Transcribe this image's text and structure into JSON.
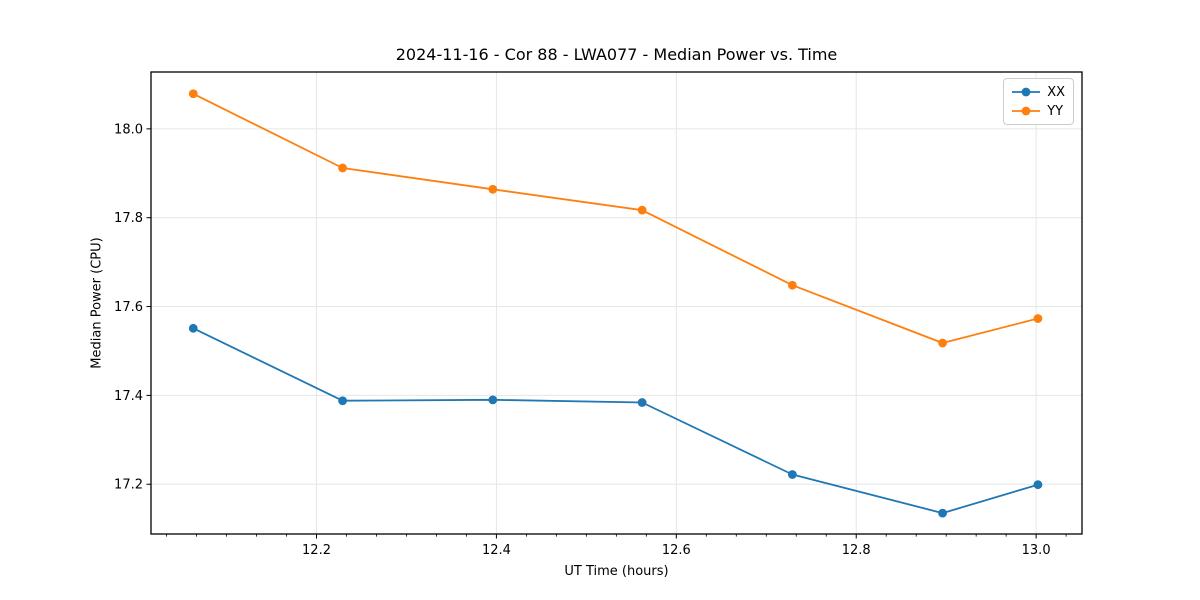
{
  "chart_data": {
    "type": "line",
    "title": "2024-11-16 - Cor 88 - LWA077 - Median Power vs. Time",
    "xlabel": "UT Time (hours)",
    "ylabel": "Median Power (CPU)",
    "xlim": [
      12.016,
      13.051
    ],
    "ylim": [
      17.088,
      18.128
    ],
    "x_ticks": [
      {
        "value": 12.2,
        "label": "12.2"
      },
      {
        "value": 12.4,
        "label": "12.4"
      },
      {
        "value": 12.6,
        "label": "12.6"
      },
      {
        "value": 12.8,
        "label": "12.8"
      },
      {
        "value": 13.0,
        "label": "13.0"
      }
    ],
    "y_ticks": [
      {
        "value": 17.2,
        "label": "17.2"
      },
      {
        "value": 17.4,
        "label": "17.4"
      },
      {
        "value": 17.6,
        "label": "17.6"
      },
      {
        "value": 17.8,
        "label": "17.8"
      },
      {
        "value": 18.0,
        "label": "18.0"
      }
    ],
    "x_minor_subdivisions": 6,
    "grid": true,
    "grid_color": "#e6e6e6",
    "background": "#ffffff",
    "spine_color": "#000000",
    "legend_position": "upper right",
    "marker": "circle",
    "x": [
      12.063,
      12.229,
      12.396,
      12.562,
      12.729,
      12.896,
      13.002
    ],
    "series": [
      {
        "name": "XX",
        "color": "#1f77b4",
        "values": [
          17.551,
          17.388,
          17.39,
          17.384,
          17.222,
          17.135,
          17.199
        ]
      },
      {
        "name": "YY",
        "color": "#ff7f0e",
        "values": [
          18.079,
          17.912,
          17.864,
          17.817,
          17.648,
          17.518,
          17.573
        ]
      }
    ]
  }
}
